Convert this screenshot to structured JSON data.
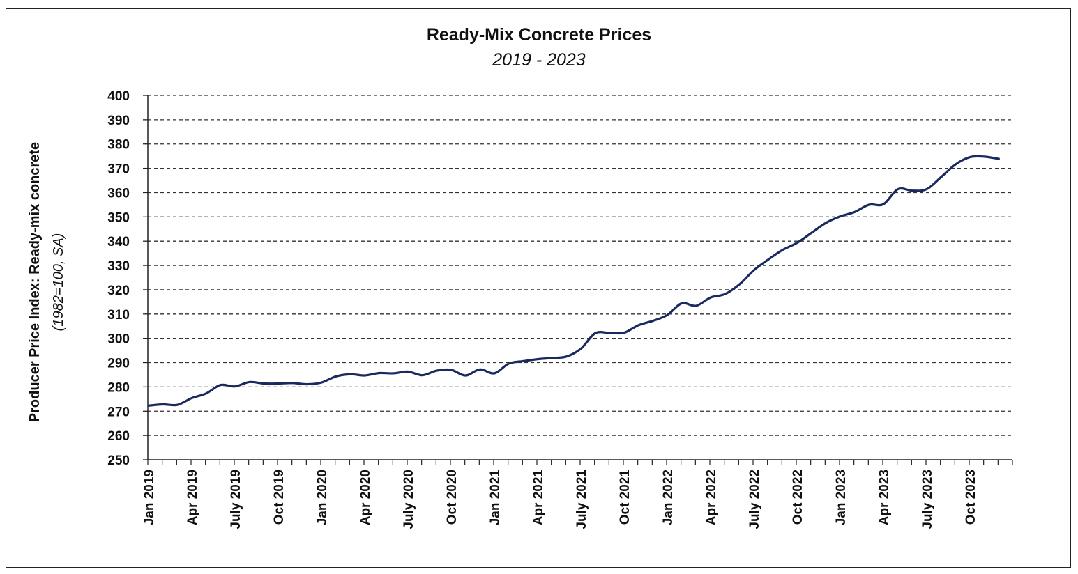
{
  "chart_data": {
    "type": "line",
    "title": "Ready-Mix Concrete Prices",
    "subtitle": "2019 - 2023",
    "ylabel": "Producer Price Index: Ready-mix concrete",
    "ylabel_sub": "(1982=100, SA)",
    "xlabel": "",
    "ylim": [
      250,
      400
    ],
    "yticks": [
      "250",
      "260",
      "270",
      "280",
      "290",
      "300",
      "310",
      "320",
      "330",
      "340",
      "350",
      "360",
      "370",
      "380",
      "390",
      "400"
    ],
    "grid": "horizontal dashed",
    "legend": "none",
    "line_color": "#1b2a5e",
    "xtick_labels": [
      {
        "index": 0,
        "label": "Jan 2019"
      },
      {
        "index": 3,
        "label": "Apr 2019"
      },
      {
        "index": 6,
        "label": "July 2019"
      },
      {
        "index": 9,
        "label": "Oct 2019"
      },
      {
        "index": 12,
        "label": "Jan 2020"
      },
      {
        "index": 15,
        "label": "Apr 2020"
      },
      {
        "index": 18,
        "label": "July 2020"
      },
      {
        "index": 21,
        "label": "Oct 2020"
      },
      {
        "index": 24,
        "label": "Jan 2021"
      },
      {
        "index": 27,
        "label": "Apr 2021"
      },
      {
        "index": 30,
        "label": "July 2021"
      },
      {
        "index": 33,
        "label": "Oct 2021"
      },
      {
        "index": 36,
        "label": "Jan 2022"
      },
      {
        "index": 39,
        "label": "Apr 2022"
      },
      {
        "index": 42,
        "label": "July 2022"
      },
      {
        "index": 45,
        "label": "Oct 2022"
      },
      {
        "index": 48,
        "label": "Jan 2023"
      },
      {
        "index": 51,
        "label": "Apr 2023"
      },
      {
        "index": 54,
        "label": "July 2023"
      },
      {
        "index": 57,
        "label": "Oct 2023"
      }
    ],
    "x": [
      "2019-01",
      "2019-02",
      "2019-03",
      "2019-04",
      "2019-05",
      "2019-06",
      "2019-07",
      "2019-08",
      "2019-09",
      "2019-10",
      "2019-11",
      "2019-12",
      "2020-01",
      "2020-02",
      "2020-03",
      "2020-04",
      "2020-05",
      "2020-06",
      "2020-07",
      "2020-08",
      "2020-09",
      "2020-10",
      "2020-11",
      "2020-12",
      "2021-01",
      "2021-02",
      "2021-03",
      "2021-04",
      "2021-05",
      "2021-06",
      "2021-07",
      "2021-08",
      "2021-09",
      "2021-10",
      "2021-11",
      "2021-12",
      "2022-01",
      "2022-02",
      "2022-03",
      "2022-04",
      "2022-05",
      "2022-06",
      "2022-07",
      "2022-08",
      "2022-09",
      "2022-10",
      "2022-11",
      "2022-12",
      "2023-01",
      "2023-02",
      "2023-03",
      "2023-04",
      "2023-05",
      "2023-06",
      "2023-07",
      "2023-08",
      "2023-09",
      "2023-10",
      "2023-11",
      "2023-12"
    ],
    "series": [
      {
        "values": [
          272.3,
          272.8,
          272.6,
          275.4,
          277.3,
          280.8,
          280.2,
          282.0,
          281.4,
          281.4,
          281.6,
          281.1,
          281.8,
          284.3,
          285.2,
          284.7,
          285.7,
          285.6,
          286.3,
          284.8,
          286.7,
          287.0,
          284.7,
          287.2,
          285.6,
          289.6,
          290.6,
          291.4,
          291.9,
          292.5,
          295.7,
          302.1,
          302.2,
          302.3,
          305.4,
          307.2,
          309.6,
          314.4,
          313.4,
          316.8,
          318.2,
          322.2,
          328.0,
          332.4,
          336.4,
          339.3,
          343.4,
          347.5,
          350.2,
          352.0,
          355.0,
          355.2,
          361.4,
          360.8,
          361.4,
          366.4,
          371.6,
          374.6,
          374.8,
          373.9
        ]
      }
    ]
  }
}
